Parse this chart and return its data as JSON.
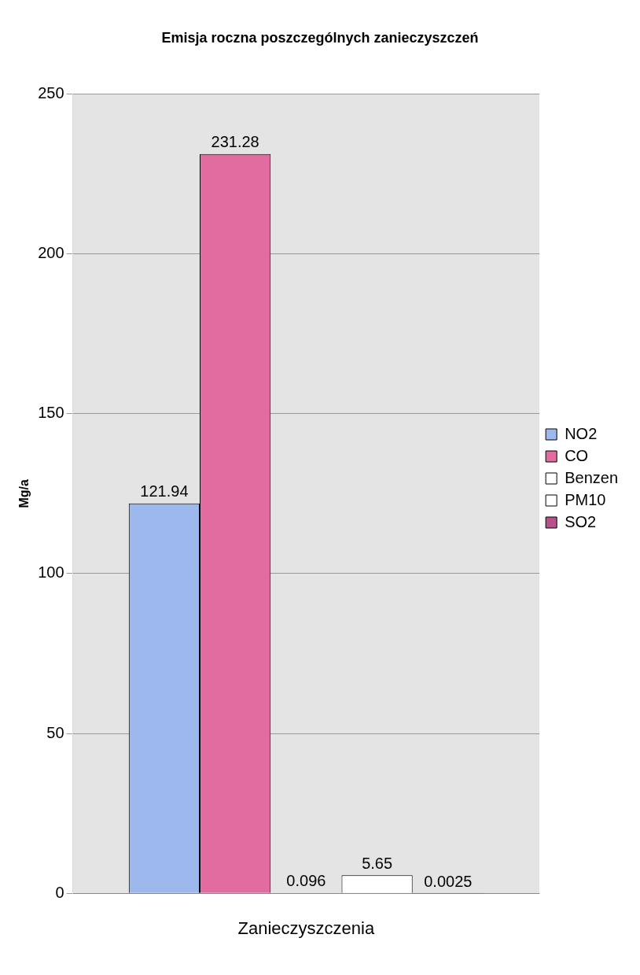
{
  "chart_data": {
    "type": "bar",
    "title": "Emisja roczna poszczególnych zanieczyszczeń",
    "xlabel": "Zanieczyszczenia",
    "ylabel": "Mg/a",
    "categories": [
      null
    ],
    "series": [
      {
        "name": "NO2",
        "color": "#9db8ec",
        "values": [
          121.94
        ]
      },
      {
        "name": "CO",
        "color": "#e26c9f",
        "values": [
          231.28
        ]
      },
      {
        "name": "Benzen",
        "color": "#ffffff",
        "values": [
          0.096
        ]
      },
      {
        "name": "PM10",
        "color": "#ffffff",
        "values": [
          5.65
        ]
      },
      {
        "name": "SO2",
        "color": "#b8508a",
        "values": [
          0.0025
        ]
      }
    ],
    "ylim": [
      0,
      250
    ],
    "yticks": [
      0,
      50,
      100,
      150,
      200,
      250
    ],
    "grid": "y",
    "legend": "right",
    "data_labels": true
  }
}
